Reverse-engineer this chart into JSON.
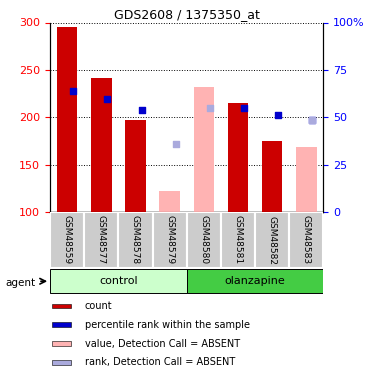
{
  "title": "GDS2608 / 1375350_at",
  "samples": [
    "GSM48559",
    "GSM48577",
    "GSM48578",
    "GSM48579",
    "GSM48580",
    "GSM48581",
    "GSM48582",
    "GSM48583"
  ],
  "red_bars": [
    295,
    241,
    197,
    null,
    null,
    215,
    175,
    null
  ],
  "blue_squares": [
    228,
    219,
    208,
    null,
    null,
    210,
    202,
    197
  ],
  "pink_bars": [
    null,
    null,
    null,
    122,
    232,
    null,
    null,
    168
  ],
  "lavender_squares": [
    null,
    null,
    null,
    172,
    210,
    null,
    null,
    197
  ],
  "ylim": [
    100,
    300
  ],
  "y_left_ticks": [
    100,
    150,
    200,
    250,
    300
  ],
  "y_right_ticks": [
    0,
    25,
    50,
    75,
    100
  ],
  "y_right_labels": [
    "0",
    "25",
    "50",
    "75",
    "100%"
  ],
  "bar_width": 0.6,
  "red_color": "#cc0000",
  "pink_color": "#ffb3b3",
  "blue_color": "#0000cc",
  "lavender_color": "#aaaadd",
  "control_bg_light": "#ccffcc",
  "control_bg_dark": "#44cc44",
  "sample_bg": "#cccccc",
  "legend_items": [
    "count",
    "percentile rank within the sample",
    "value, Detection Call = ABSENT",
    "rank, Detection Call = ABSENT"
  ],
  "legend_colors": [
    "#cc0000",
    "#0000cc",
    "#ffb3b3",
    "#aaaadd"
  ],
  "n_control": 4,
  "n_olanzapine": 4
}
